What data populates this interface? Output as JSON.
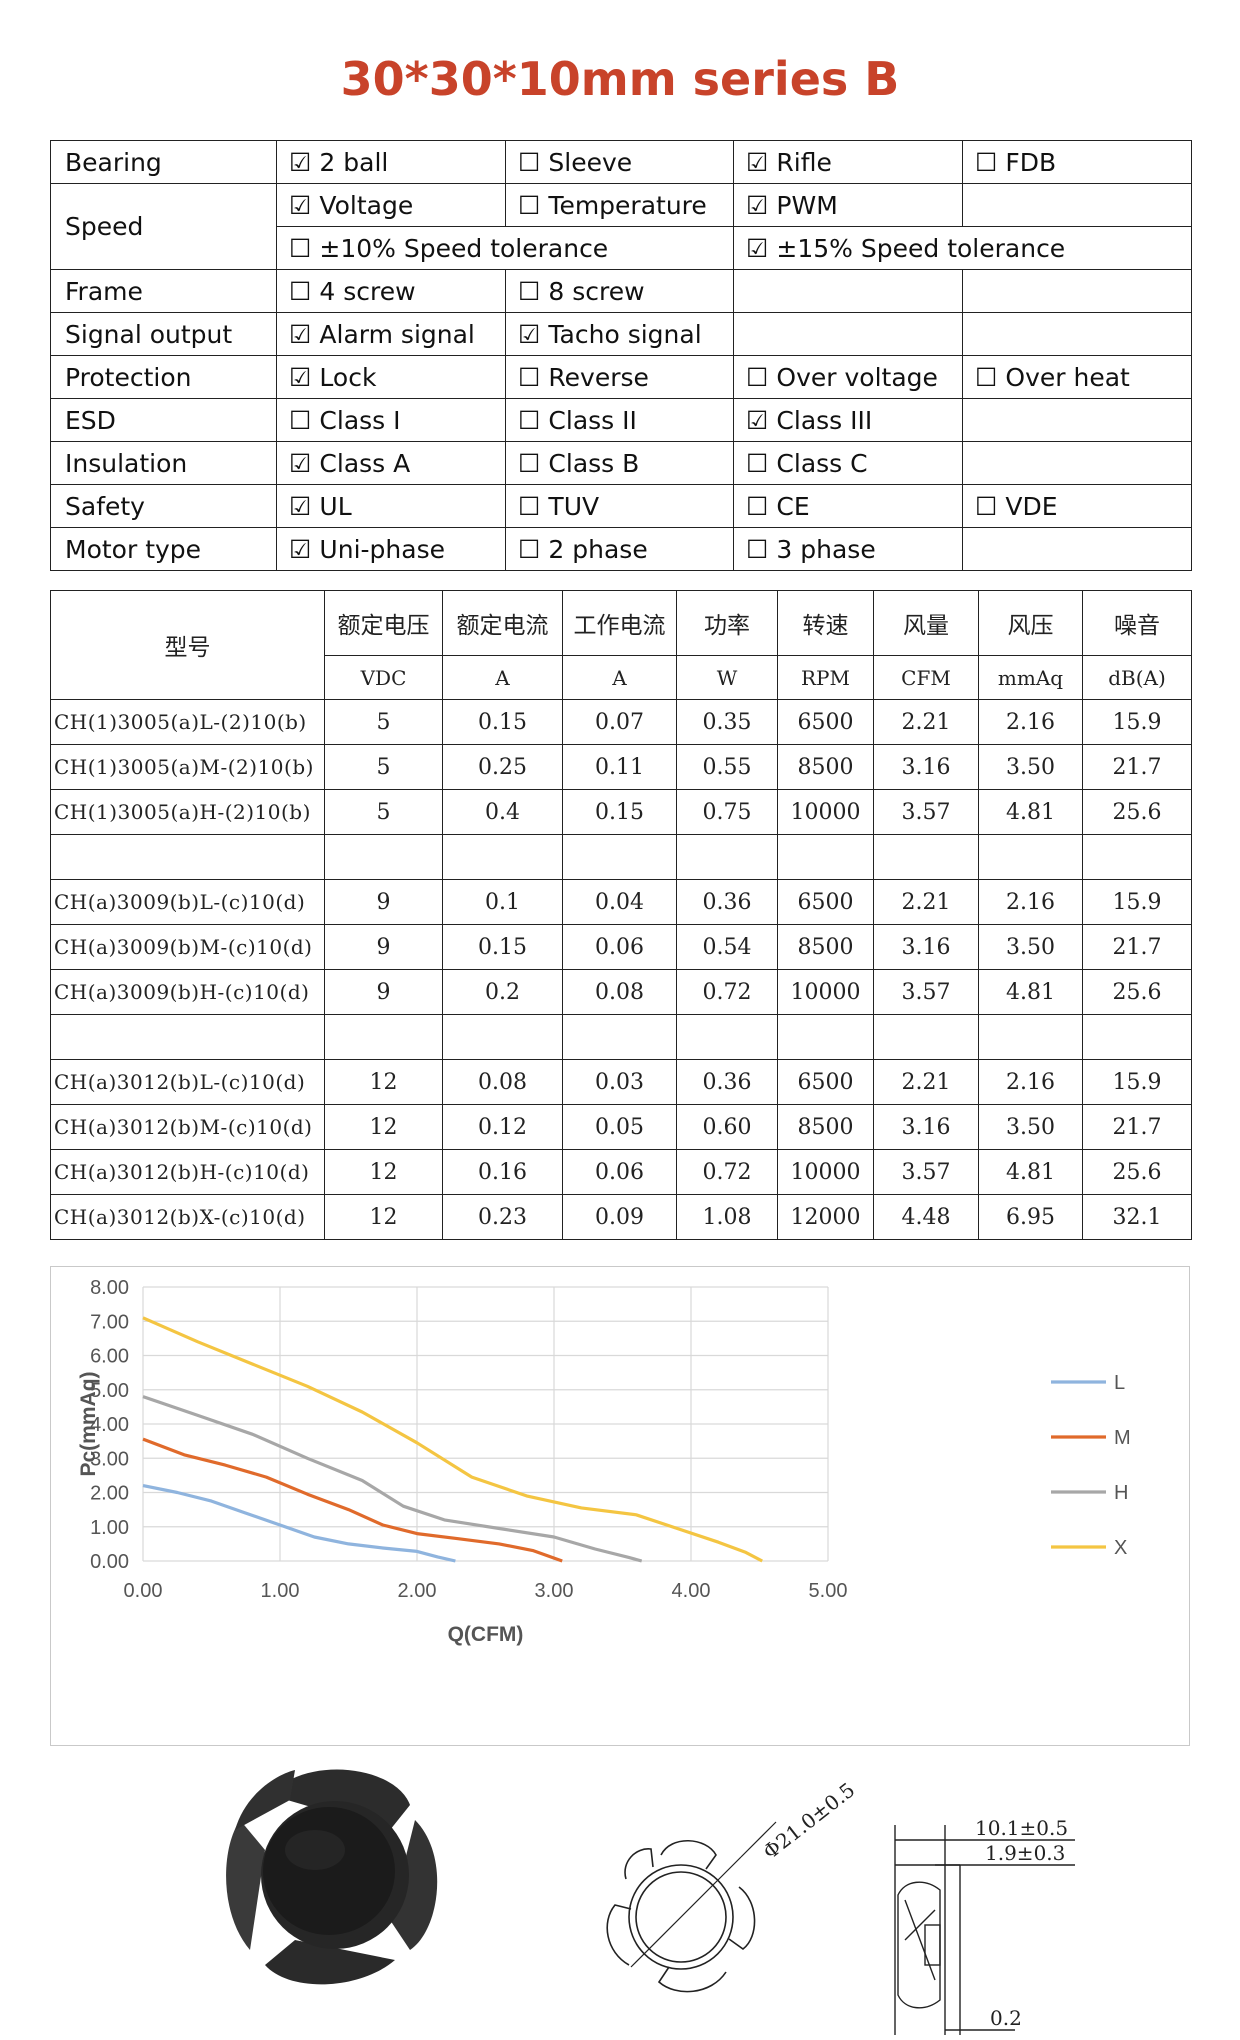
{
  "title": "30*30*10mm series B",
  "features": [
    {
      "label": "Bearing",
      "cells": [
        {
          "checked": true,
          "text": "2 ball"
        },
        {
          "checked": false,
          "text": "Sleeve"
        },
        {
          "checked": true,
          "text": "Rifle"
        },
        {
          "checked": false,
          "text": "FDB"
        }
      ]
    },
    {
      "label": "Speed",
      "cells": [
        {
          "checked": true,
          "text": "Voltage"
        },
        {
          "checked": false,
          "text": "Temperature"
        },
        {
          "checked": true,
          "text": "PWM"
        },
        null
      ]
    },
    {
      "label": "",
      "cells": [
        {
          "checked": false,
          "text": "±10% Speed tolerance"
        },
        {
          "checked": true,
          "text": "±15% Speed tolerance"
        }
      ]
    },
    {
      "label": "Frame",
      "cells": [
        {
          "checked": false,
          "text": "4 screw"
        },
        {
          "checked": false,
          "text": "8 screw"
        },
        null,
        null
      ]
    },
    {
      "label": "Signal output",
      "cells": [
        {
          "checked": true,
          "text": "Alarm signal"
        },
        {
          "checked": true,
          "text": "Tacho signal"
        },
        null,
        null
      ]
    },
    {
      "label": "Protection",
      "cells": [
        {
          "checked": true,
          "text": "Lock"
        },
        {
          "checked": false,
          "text": "Reverse"
        },
        {
          "checked": false,
          "text": "Over voltage"
        },
        {
          "checked": false,
          "text": "Over heat"
        }
      ]
    },
    {
      "label": "ESD",
      "cells": [
        {
          "checked": false,
          "text": "Class I"
        },
        {
          "checked": false,
          "text": "Class II"
        },
        {
          "checked": true,
          "text": "Class III"
        },
        null
      ]
    },
    {
      "label": "Insulation",
      "cells": [
        {
          "checked": true,
          "text": "Class A"
        },
        {
          "checked": false,
          "text": "Class B"
        },
        {
          "checked": false,
          "text": "Class C"
        },
        null
      ]
    },
    {
      "label": "Safety",
      "cells": [
        {
          "checked": true,
          "text": "UL"
        },
        {
          "checked": false,
          "text": "TUV"
        },
        {
          "checked": false,
          "text": "CE"
        },
        {
          "checked": false,
          "text": "VDE"
        }
      ]
    },
    {
      "label": "Motor type",
      "cells": [
        {
          "checked": true,
          "text": "Uni-phase"
        },
        {
          "checked": false,
          "text": "2 phase"
        },
        {
          "checked": false,
          "text": "3 phase"
        },
        null
      ]
    }
  ],
  "check_on": "☑",
  "check_off": "☐",
  "spec": {
    "model_header": "型号",
    "headers": [
      "额定电压",
      "额定电流",
      "工作电流",
      "功率",
      "转速",
      "风量",
      "风压",
      "噪音"
    ],
    "units": [
      "VDC",
      "A",
      "A",
      "W",
      "RPM",
      "CFM",
      "mmAq",
      "dB(A)"
    ],
    "groups": [
      [
        [
          "CH(1)3005(a)L-(2)10(b)",
          "5",
          "0.15",
          "0.07",
          "0.35",
          "6500",
          "2.21",
          "2.16",
          "15.9"
        ],
        [
          "CH(1)3005(a)M-(2)10(b)",
          "5",
          "0.25",
          "0.11",
          "0.55",
          "8500",
          "3.16",
          "3.50",
          "21.7"
        ],
        [
          "CH(1)3005(a)H-(2)10(b)",
          "5",
          "0.4",
          "0.15",
          "0.75",
          "10000",
          "3.57",
          "4.81",
          "25.6"
        ]
      ],
      [
        [
          "CH(a)3009(b)L-(c)10(d)",
          "9",
          "0.1",
          "0.04",
          "0.36",
          "6500",
          "2.21",
          "2.16",
          "15.9"
        ],
        [
          "CH(a)3009(b)M-(c)10(d)",
          "9",
          "0.15",
          "0.06",
          "0.54",
          "8500",
          "3.16",
          "3.50",
          "21.7"
        ],
        [
          "CH(a)3009(b)H-(c)10(d)",
          "9",
          "0.2",
          "0.08",
          "0.72",
          "10000",
          "3.57",
          "4.81",
          "25.6"
        ]
      ],
      [
        [
          "CH(a)3012(b)L-(c)10(d)",
          "12",
          "0.08",
          "0.03",
          "0.36",
          "6500",
          "2.21",
          "2.16",
          "15.9"
        ],
        [
          "CH(a)3012(b)M-(c)10(d)",
          "12",
          "0.12",
          "0.05",
          "0.60",
          "8500",
          "3.16",
          "3.50",
          "21.7"
        ],
        [
          "CH(a)3012(b)H-(c)10(d)",
          "12",
          "0.16",
          "0.06",
          "0.72",
          "10000",
          "3.57",
          "4.81",
          "25.6"
        ],
        [
          "CH(a)3012(b)X-(c)10(d)",
          "12",
          "0.23",
          "0.09",
          "1.08",
          "12000",
          "4.48",
          "6.95",
          "32.1"
        ]
      ]
    ]
  },
  "chart_data": {
    "type": "line",
    "xlabel": "Q(CFM)",
    "ylabel": "Pc(mmAq)",
    "xlim": [
      0,
      5
    ],
    "ylim": [
      0,
      8
    ],
    "xticks": [
      "0.00",
      "1.00",
      "2.00",
      "3.00",
      "4.00",
      "5.00"
    ],
    "yticks": [
      "0.00",
      "1.00",
      "2.00",
      "3.00",
      "4.00",
      "5.00",
      "6.00",
      "7.00",
      "8.00"
    ],
    "grid": "vertical and horizontal",
    "legend_position": "right",
    "series": [
      {
        "name": "L",
        "color": "#8fb4de",
        "x": [
          0,
          0.25,
          0.5,
          0.75,
          1.0,
          1.25,
          1.5,
          1.75,
          2.0,
          2.15,
          2.28
        ],
        "y": [
          2.2,
          2.0,
          1.75,
          1.4,
          1.05,
          0.7,
          0.5,
          0.38,
          0.28,
          0.12,
          0.0
        ]
      },
      {
        "name": "M",
        "color": "#e06a2b",
        "x": [
          0,
          0.3,
          0.6,
          0.9,
          1.2,
          1.5,
          1.75,
          2.0,
          2.3,
          2.6,
          2.85,
          3.06
        ],
        "y": [
          3.56,
          3.1,
          2.8,
          2.45,
          1.95,
          1.5,
          1.05,
          0.8,
          0.65,
          0.5,
          0.3,
          0.0
        ]
      },
      {
        "name": "H",
        "color": "#a7a7a7",
        "x": [
          0,
          0.4,
          0.8,
          1.2,
          1.6,
          1.9,
          2.2,
          2.6,
          3.0,
          3.3,
          3.55,
          3.64
        ],
        "y": [
          4.8,
          4.25,
          3.7,
          3.0,
          2.35,
          1.6,
          1.2,
          0.95,
          0.7,
          0.35,
          0.1,
          0.0
        ]
      },
      {
        "name": "X",
        "color": "#f4c542",
        "x": [
          0,
          0.4,
          0.8,
          1.2,
          1.6,
          2.0,
          2.4,
          2.8,
          3.2,
          3.6,
          3.9,
          4.2,
          4.4,
          4.52
        ],
        "y": [
          7.1,
          6.4,
          5.75,
          5.1,
          4.35,
          3.45,
          2.45,
          1.9,
          1.55,
          1.35,
          0.95,
          0.55,
          0.25,
          0.0
        ]
      }
    ]
  },
  "drawing": {
    "diameter": "Φ21.0±0.5",
    "thickness": "10.1±0.5",
    "hub_offset": "1.9±0.3",
    "blade_gap": "0.2"
  }
}
